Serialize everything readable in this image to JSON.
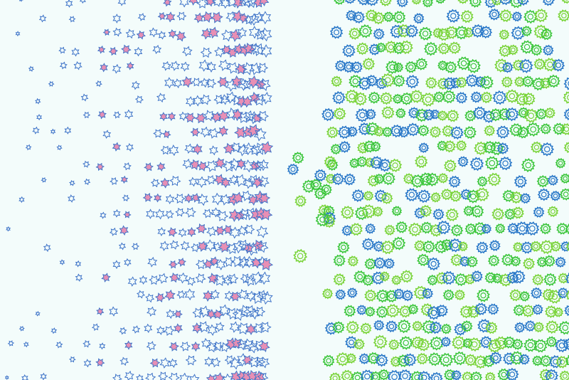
{
  "colors": {
    "background": "#f3fcfb",
    "star_stroke": "#3f74c8",
    "star_fill": "#e88fb4",
    "gear_blue": "#2a78c8",
    "gear_green": "#3cc63c",
    "gear_lime": "#7ad43a"
  },
  "pattern": {
    "left_shape": "star-icon",
    "right_shape": "gear-icon"
  }
}
